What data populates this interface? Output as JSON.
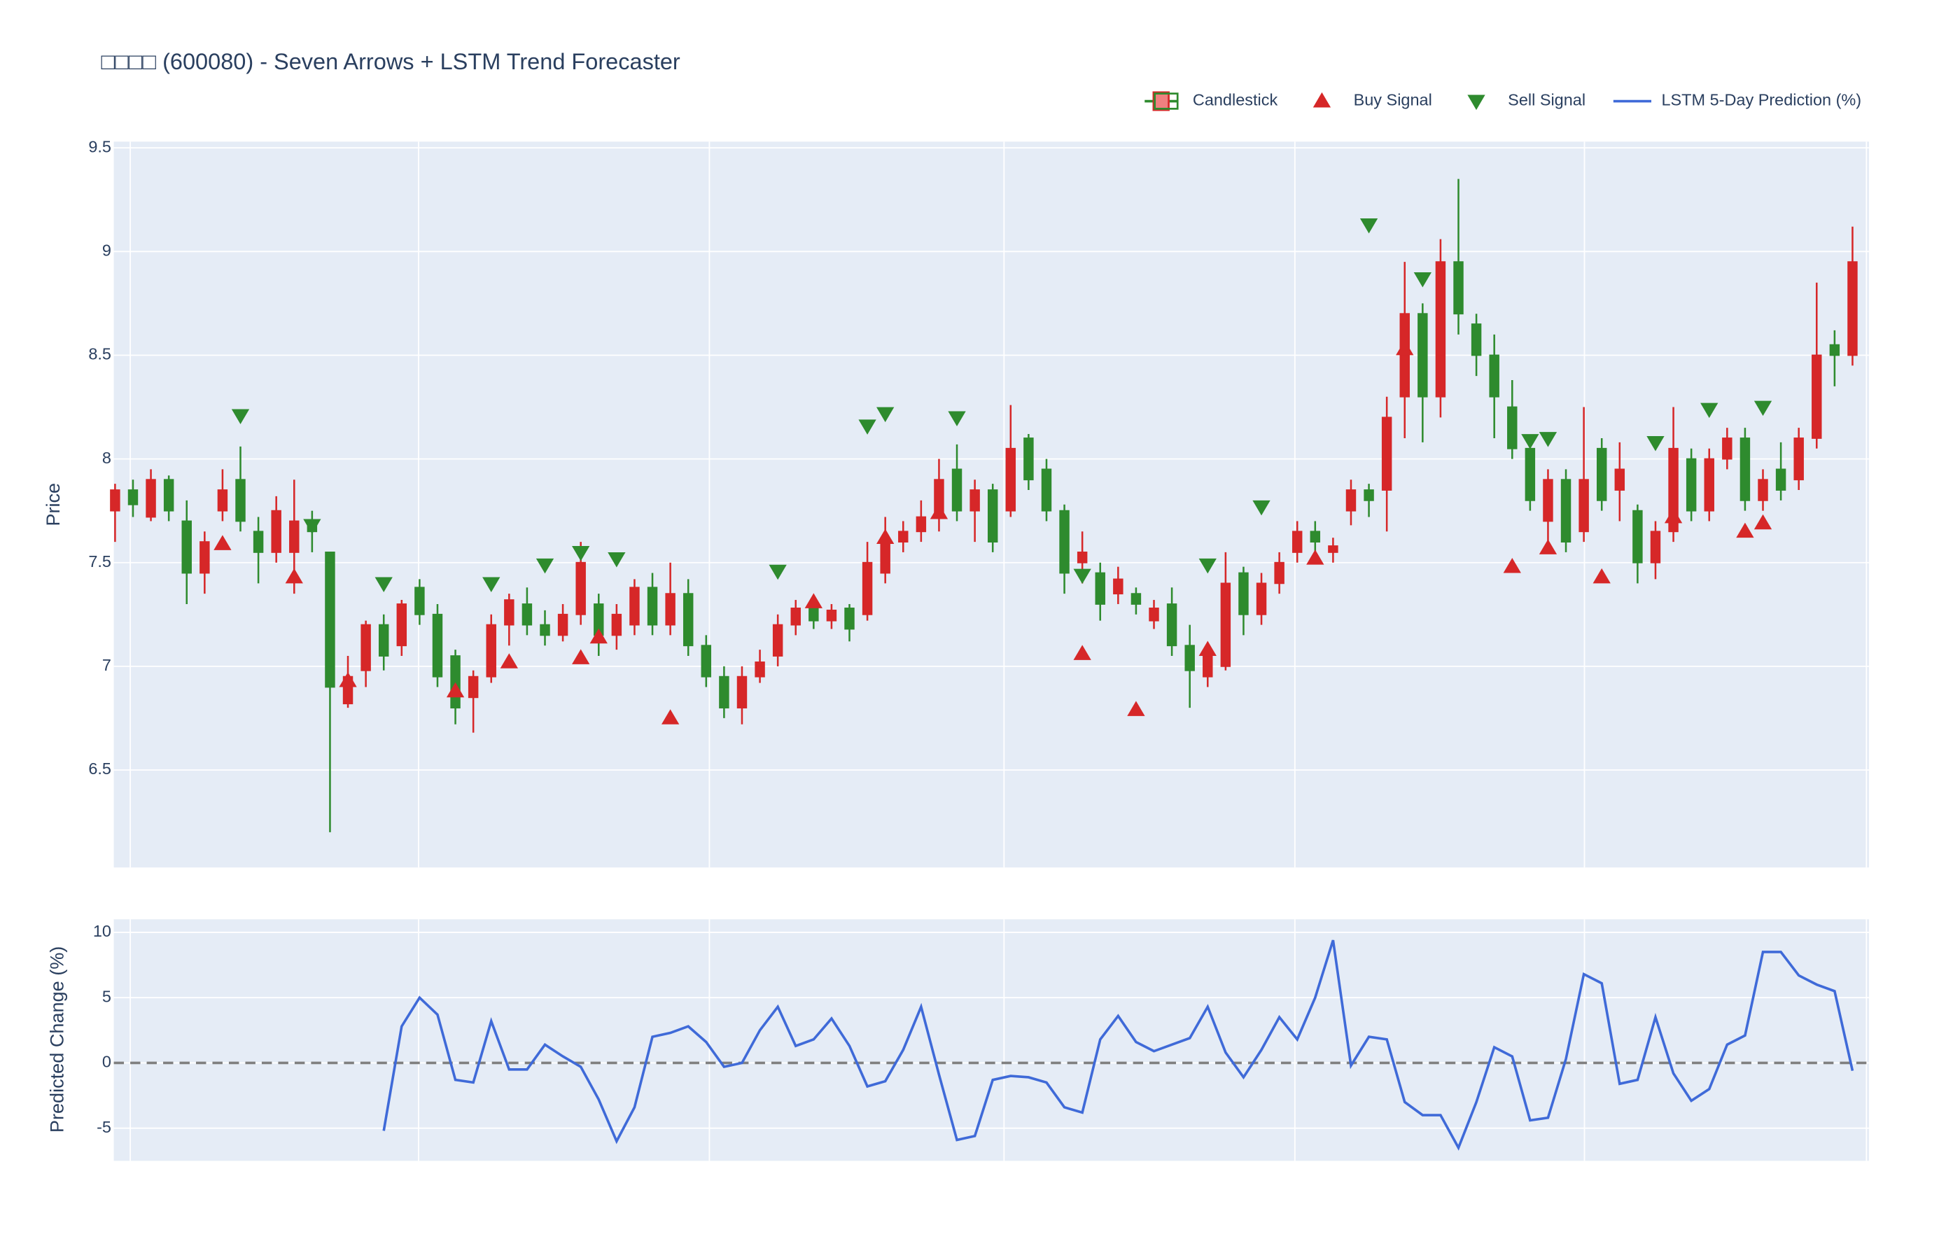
{
  "chart_data": [
    {
      "type": "candlestick",
      "title": "□□□□ (600080) - Seven Arrows + LSTM Trend Forecaster",
      "ylabel": "Price",
      "ylim": [
        6.03,
        9.53
      ],
      "yticks": [
        6.5,
        7,
        7.5,
        8,
        8.5,
        9,
        9.5
      ],
      "grid": true,
      "legend": "top-right",
      "series": [
        {
          "name": "Candlestick",
          "increasing_color": "#d62728",
          "decreasing_color": "#2e8b2e",
          "open": [
            7.75,
            7.85,
            7.72,
            7.9,
            7.7,
            7.45,
            7.75,
            7.9,
            7.65,
            7.55,
            7.55,
            7.7,
            7.55,
            6.82,
            6.98,
            7.2,
            7.1,
            7.38,
            7.25,
            7.05,
            6.85,
            6.95,
            7.2,
            7.3,
            7.2,
            7.15,
            7.25,
            7.3,
            7.15,
            7.2,
            7.38,
            7.2,
            7.35,
            7.1,
            6.95,
            6.8,
            6.95,
            7.05,
            7.2,
            7.28,
            7.22,
            7.28,
            7.25,
            7.45,
            7.6,
            7.65,
            7.72,
            7.95,
            7.75,
            7.85,
            7.75,
            8.1,
            7.95,
            7.75,
            7.5,
            7.45,
            7.35,
            7.35,
            7.22,
            7.3,
            7.1,
            6.95,
            7.0,
            7.45,
            7.25,
            7.4,
            7.55,
            7.65,
            7.55,
            7.75,
            7.85,
            7.85,
            8.3,
            8.7,
            8.3,
            8.95,
            8.65,
            8.5,
            8.25,
            8.05,
            7.7,
            7.9,
            7.65,
            8.05,
            7.85,
            7.75,
            7.5,
            7.65,
            8.0,
            7.75,
            8.0,
            8.1,
            7.8,
            7.95,
            7.9,
            8.1,
            8.55,
            8.5
          ],
          "high": [
            7.88,
            7.9,
            7.95,
            7.92,
            7.8,
            7.65,
            7.95,
            8.06,
            7.72,
            7.82,
            7.9,
            7.75,
            7.55,
            7.05,
            7.22,
            7.25,
            7.32,
            7.42,
            7.3,
            7.08,
            6.98,
            7.25,
            7.35,
            7.38,
            7.27,
            7.3,
            7.6,
            7.35,
            7.3,
            7.42,
            7.45,
            7.5,
            7.42,
            7.15,
            7.0,
            7.0,
            7.08,
            7.25,
            7.32,
            7.3,
            7.3,
            7.3,
            7.6,
            7.72,
            7.7,
            7.8,
            8.0,
            8.07,
            7.9,
            7.88,
            8.26,
            8.12,
            8.0,
            7.78,
            7.65,
            7.5,
            7.48,
            7.38,
            7.32,
            7.38,
            7.2,
            7.08,
            7.55,
            7.48,
            7.45,
            7.55,
            7.7,
            7.7,
            7.62,
            7.9,
            7.88,
            8.3,
            8.95,
            8.75,
            9.06,
            9.35,
            8.7,
            8.6,
            8.38,
            8.1,
            7.95,
            7.95,
            8.25,
            8.1,
            8.08,
            7.78,
            7.7,
            8.25,
            8.05,
            8.05,
            8.15,
            8.15,
            7.95,
            8.08,
            8.15,
            8.85,
            8.62,
            9.12
          ],
          "low": [
            7.6,
            7.72,
            7.7,
            7.7,
            7.3,
            7.35,
            7.7,
            7.65,
            7.4,
            7.5,
            7.35,
            7.55,
            6.2,
            6.8,
            6.9,
            6.98,
            7.05,
            7.2,
            6.9,
            6.72,
            6.68,
            6.92,
            7.1,
            7.15,
            7.1,
            7.12,
            7.2,
            7.05,
            7.08,
            7.15,
            7.15,
            7.15,
            7.05,
            6.9,
            6.75,
            6.72,
            6.92,
            7.0,
            7.15,
            7.18,
            7.18,
            7.12,
            7.22,
            7.4,
            7.55,
            7.6,
            7.65,
            7.7,
            7.6,
            7.55,
            7.72,
            7.85,
            7.7,
            7.35,
            7.4,
            7.22,
            7.3,
            7.25,
            7.18,
            7.05,
            6.8,
            6.9,
            6.98,
            7.15,
            7.2,
            7.35,
            7.5,
            7.55,
            7.5,
            7.68,
            7.72,
            7.65,
            8.1,
            8.08,
            8.2,
            8.6,
            8.4,
            8.1,
            8.0,
            7.75,
            7.6,
            7.55,
            7.6,
            7.75,
            7.7,
            7.4,
            7.42,
            7.6,
            7.7,
            7.7,
            7.95,
            7.75,
            7.75,
            7.8,
            7.85,
            8.05,
            8.35,
            8.45
          ],
          "close": [
            7.85,
            7.78,
            7.9,
            7.75,
            7.45,
            7.6,
            7.85,
            7.7,
            7.55,
            7.75,
            7.7,
            7.65,
            6.9,
            6.95,
            7.2,
            7.05,
            7.3,
            7.25,
            6.95,
            6.8,
            6.95,
            7.2,
            7.32,
            7.2,
            7.15,
            7.25,
            7.5,
            7.15,
            7.25,
            7.38,
            7.2,
            7.35,
            7.1,
            6.95,
            6.8,
            6.95,
            7.02,
            7.2,
            7.28,
            7.22,
            7.27,
            7.18,
            7.5,
            7.6,
            7.65,
            7.72,
            7.9,
            7.75,
            7.85,
            7.6,
            8.05,
            7.9,
            7.75,
            7.45,
            7.55,
            7.3,
            7.42,
            7.3,
            7.28,
            7.1,
            6.98,
            7.05,
            7.4,
            7.25,
            7.4,
            7.5,
            7.65,
            7.6,
            7.58,
            7.85,
            7.8,
            8.2,
            8.7,
            8.3,
            8.95,
            8.7,
            8.5,
            8.3,
            8.05,
            7.8,
            7.9,
            7.6,
            7.9,
            7.8,
            7.95,
            7.5,
            7.65,
            8.05,
            7.75,
            8.0,
            8.1,
            7.8,
            7.9,
            7.85,
            8.1,
            8.5,
            8.5,
            8.95
          ]
        },
        {
          "name": "Buy Signal",
          "color": "#d62728",
          "values": [
            null,
            null,
            null,
            null,
            null,
            null,
            7.59,
            null,
            null,
            null,
            7.43,
            null,
            null,
            6.93,
            null,
            null,
            null,
            null,
            null,
            6.88,
            null,
            null,
            7.02,
            null,
            null,
            null,
            7.04,
            7.14,
            null,
            null,
            null,
            6.75,
            null,
            null,
            null,
            null,
            null,
            null,
            null,
            7.31,
            null,
            null,
            null,
            7.62,
            null,
            null,
            7.74,
            null,
            null,
            null,
            null,
            null,
            null,
            null,
            7.06,
            null,
            null,
            6.79,
            null,
            null,
            null,
            7.08,
            null,
            null,
            null,
            null,
            null,
            7.52,
            null,
            null,
            null,
            null,
            8.53,
            null,
            null,
            null,
            null,
            null,
            7.48,
            null,
            7.57,
            null,
            null,
            7.43,
            null,
            null,
            null,
            7.72,
            null,
            null,
            null,
            7.65,
            7.69,
            null,
            null,
            null,
            null,
            null
          ]
        },
        {
          "name": "Sell Signal",
          "color": "#2e8b2e",
          "values": [
            null,
            null,
            null,
            null,
            null,
            null,
            null,
            8.21,
            null,
            null,
            null,
            7.68,
            null,
            null,
            null,
            7.4,
            null,
            null,
            null,
            null,
            null,
            7.4,
            null,
            null,
            7.49,
            null,
            7.55,
            null,
            7.52,
            null,
            null,
            null,
            null,
            null,
            null,
            null,
            null,
            7.46,
            null,
            null,
            null,
            null,
            8.16,
            8.22,
            null,
            null,
            null,
            8.2,
            null,
            null,
            null,
            null,
            null,
            null,
            7.44,
            null,
            null,
            null,
            null,
            null,
            null,
            7.49,
            null,
            null,
            7.77,
            null,
            null,
            null,
            null,
            null,
            9.13,
            null,
            null,
            8.87,
            null,
            null,
            null,
            null,
            null,
            8.09,
            8.1,
            null,
            null,
            null,
            null,
            null,
            8.08,
            null,
            null,
            8.24,
            null,
            null,
            8.25,
            null,
            null,
            null,
            null,
            null
          ]
        }
      ]
    },
    {
      "type": "line",
      "ylabel": "Predicted Change (%)",
      "ylim": [
        -7.5,
        11
      ],
      "yticks": [
        -5,
        0,
        5,
        10
      ],
      "grid": true,
      "hline": 0,
      "series": [
        {
          "name": "LSTM 5-Day Prediction (%)",
          "color": "#3f6ad8",
          "values": [
            null,
            null,
            null,
            null,
            null,
            null,
            null,
            null,
            null,
            null,
            null,
            null,
            null,
            null,
            null,
            -5.2,
            2.8,
            5.0,
            3.7,
            -1.3,
            -1.5,
            3.2,
            -0.5,
            -0.5,
            1.4,
            0.5,
            -0.3,
            -2.8,
            -6.0,
            -3.4,
            2.0,
            2.3,
            2.8,
            1.6,
            -0.3,
            0.0,
            2.5,
            4.3,
            1.3,
            1.8,
            3.4,
            1.3,
            -1.8,
            -1.4,
            1.0,
            4.3,
            -0.9,
            -5.9,
            -5.6,
            -1.3,
            -1.0,
            -1.1,
            -1.5,
            -3.4,
            -3.8,
            1.8,
            3.6,
            1.6,
            0.9,
            1.4,
            1.9,
            4.3,
            0.8,
            -1.1,
            1.0,
            3.5,
            1.8,
            5.0,
            9.4,
            -0.2,
            2.0,
            1.8,
            -3.0,
            -4.0,
            -4.0,
            -6.5,
            -3.0,
            1.2,
            0.5,
            -4.4,
            -4.2,
            0.3,
            6.8,
            6.1,
            -1.6,
            -1.3,
            3.5,
            -0.8,
            -2.9,
            -2.0,
            1.4,
            2.1,
            8.5,
            8.5,
            6.7,
            6.0,
            5.5,
            -0.6
          ]
        }
      ]
    }
  ]
}
